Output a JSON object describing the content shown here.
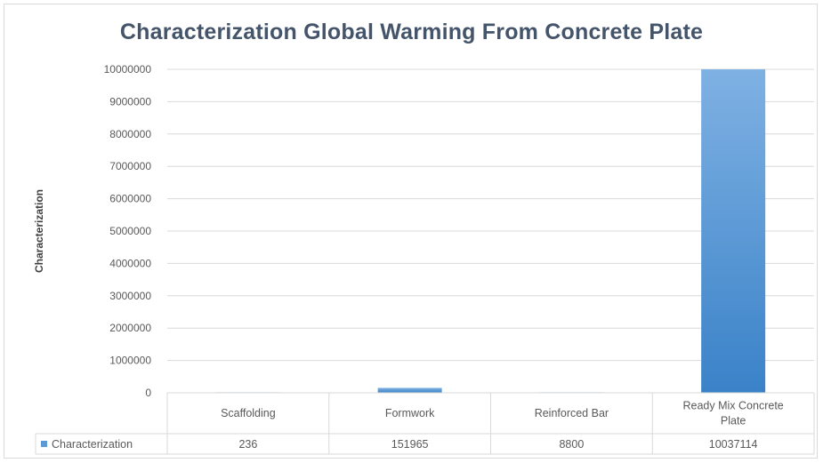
{
  "chart_data": {
    "type": "bar",
    "title": "Characterization Global Warming From Concrete Plate",
    "xlabel": "",
    "ylabel": "Characterization",
    "categories": [
      "Scaffolding",
      "Formwork",
      "Reinforced Bar",
      "Ready Mix Concrete Plate"
    ],
    "category_lines": [
      [
        "Scaffolding"
      ],
      [
        "Formwork"
      ],
      [
        "Reinforced Bar"
      ],
      [
        "Ready Mix Concrete",
        "Plate"
      ]
    ],
    "series": [
      {
        "name": "Characterization",
        "values": [
          236,
          151965,
          8800,
          10037114
        ]
      }
    ],
    "value_labels": [
      "236",
      "151965",
      "8800",
      "10037114"
    ],
    "ylim": [
      0,
      10000000
    ],
    "yticks": [
      "0",
      "1000000",
      "2000000",
      "3000000",
      "4000000",
      "5000000",
      "6000000",
      "7000000",
      "8000000",
      "9000000",
      "10000000"
    ],
    "grid": true,
    "legend": "data-table",
    "bar_color": "#5b9bd5"
  }
}
